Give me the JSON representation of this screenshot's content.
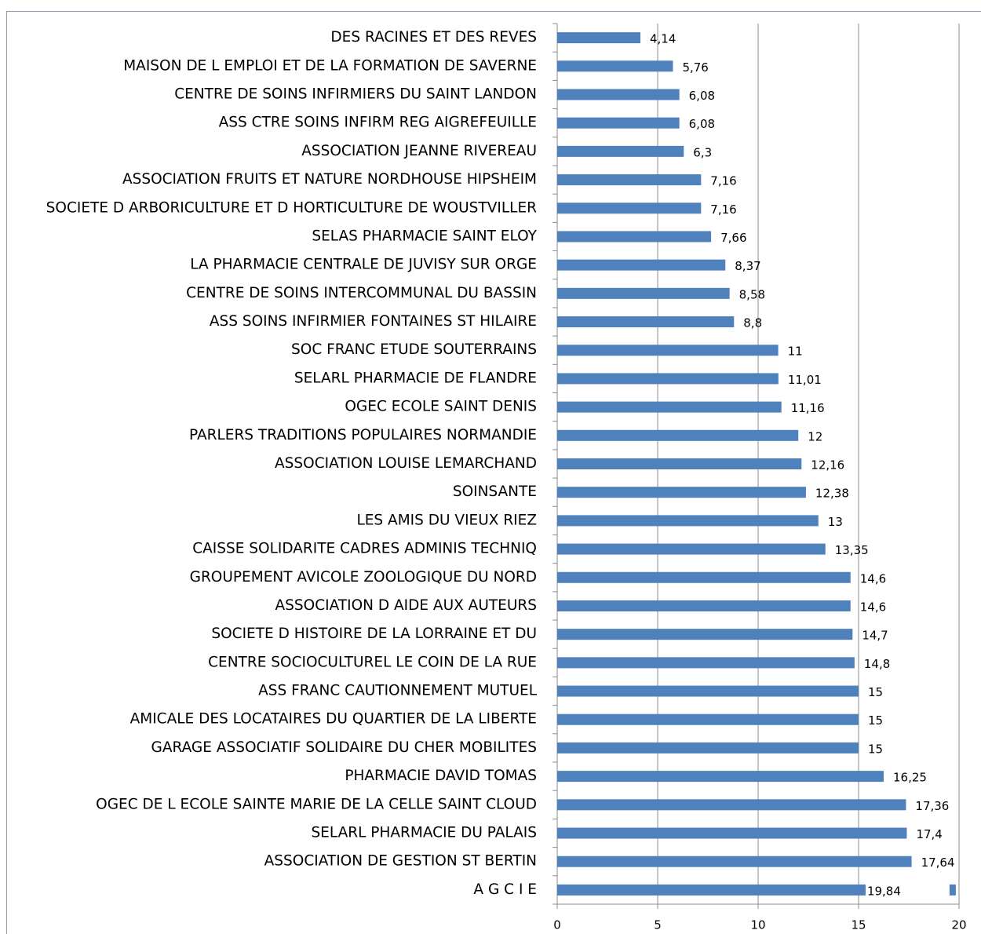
{
  "chart_data": {
    "type": "bar",
    "orientation": "horizontal",
    "categories": [
      "DES RACINES ET DES REVES",
      "MAISON DE L EMPLOI ET DE LA FORMATION DE SAVERNE",
      "CENTRE DE SOINS INFIRMIERS DU SAINT LANDON",
      "ASS CTRE SOINS INFIRM REG AIGREFEUILLE",
      "ASSOCIATION JEANNE RIVEREAU",
      "ASSOCIATION FRUITS ET NATURE NORDHOUSE  HIPSHEIM",
      "SOCIETE D ARBORICULTURE ET D HORTICULTURE DE WOUSTVILLER",
      "SELAS PHARMACIE SAINT ELOY",
      "LA PHARMACIE CENTRALE DE JUVISY SUR ORGE",
      "CENTRE DE SOINS INTERCOMMUNAL DU BASSIN",
      "ASS SOINS INFIRMIER FONTAINES ST HILAIRE",
      "SOC FRANC ETUDE SOUTERRAINS",
      "SELARL PHARMACIE DE FLANDRE",
      "OGEC ECOLE SAINT DENIS",
      "PARLERS TRADITIONS POPULAIRES NORMANDIE",
      "ASSOCIATION LOUISE LEMARCHAND",
      "SOINSANTE",
      "LES AMIS DU VIEUX RIEZ",
      "CAISSE SOLIDARITE CADRES ADMINIS TECHNIQ",
      "GROUPEMENT AVICOLE ZOOLOGIQUE DU NORD",
      "ASSOCIATION D AIDE AUX AUTEURS",
      "SOCIETE D HISTOIRE DE LA LORRAINE ET DU",
      "CENTRE SOCIOCULTUREL LE COIN DE LA RUE",
      "ASS FRANC CAUTIONNEMENT MUTUEL",
      "AMICALE DES LOCATAIRES DU QUARTIER DE LA LIBERTE",
      "GARAGE ASSOCIATIF SOLIDAIRE DU CHER  MOBILITES",
      "PHARMACIE DAVID TOMAS",
      "OGEC DE L ECOLE SAINTE MARIE DE LA CELLE SAINT CLOUD",
      "SELARL PHARMACIE DU PALAIS",
      "ASSOCIATION DE GESTION ST BERTIN",
      "A G C I E"
    ],
    "values": [
      4.14,
      5.76,
      6.08,
      6.08,
      6.3,
      7.16,
      7.16,
      7.66,
      8.37,
      8.58,
      8.8,
      11,
      11.01,
      11.16,
      12,
      12.16,
      12.38,
      13,
      13.35,
      14.6,
      14.6,
      14.7,
      14.8,
      15,
      15,
      15,
      16.25,
      17.36,
      17.4,
      17.64,
      19.84
    ],
    "value_labels": [
      "4,14",
      "5,76",
      "6,08",
      "6,08",
      "6,3",
      "7,16",
      "7,16",
      "7,66",
      "8,37",
      "8,58",
      "8,8",
      "11",
      "11,01",
      "11,16",
      "12",
      "12,16",
      "12,38",
      "13",
      "13,35",
      "14,6",
      "14,6",
      "14,7",
      "14,8",
      "15",
      "15",
      "15",
      "16,25",
      "17,36",
      "17,4",
      "17,64",
      "19,84"
    ],
    "color": "#4f81bd",
    "xlim": [
      0,
      20
    ],
    "xticks": [
      0,
      5,
      10,
      15,
      20
    ],
    "grid": true
  }
}
